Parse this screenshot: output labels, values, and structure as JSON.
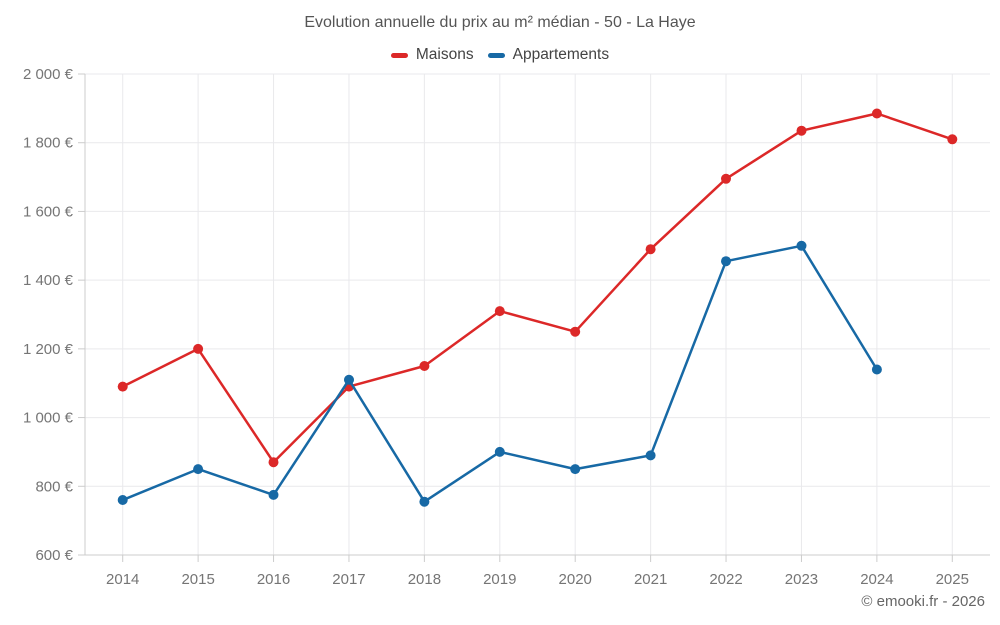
{
  "page": {
    "footer": "© emooki.fr - 2026"
  },
  "chart_data": {
    "type": "line",
    "title": "Evolution annuelle du prix au m² médian - 50 - La Haye",
    "categories": [
      "2014",
      "2015",
      "2016",
      "2017",
      "2018",
      "2019",
      "2020",
      "2021",
      "2022",
      "2023",
      "2024",
      "2025"
    ],
    "series": [
      {
        "name": "Maisons",
        "color": "#dc2828",
        "values": [
          1090,
          1200,
          870,
          1090,
          1150,
          1310,
          1250,
          1490,
          1695,
          1835,
          1885,
          1810
        ]
      },
      {
        "name": "Appartements",
        "color": "#1769a5",
        "values": [
          760,
          850,
          775,
          1110,
          755,
          900,
          850,
          890,
          1455,
          1500,
          1140,
          null
        ]
      }
    ],
    "ylabel": "",
    "xlabel": "",
    "ylim": [
      600,
      2000
    ],
    "ytick_step": 200,
    "y_unit": "€",
    "grid": true,
    "legend_position": "top",
    "colors": {
      "grid": "#e9e9ec",
      "axis": "#cccccc",
      "tick_text": "#757575"
    }
  }
}
